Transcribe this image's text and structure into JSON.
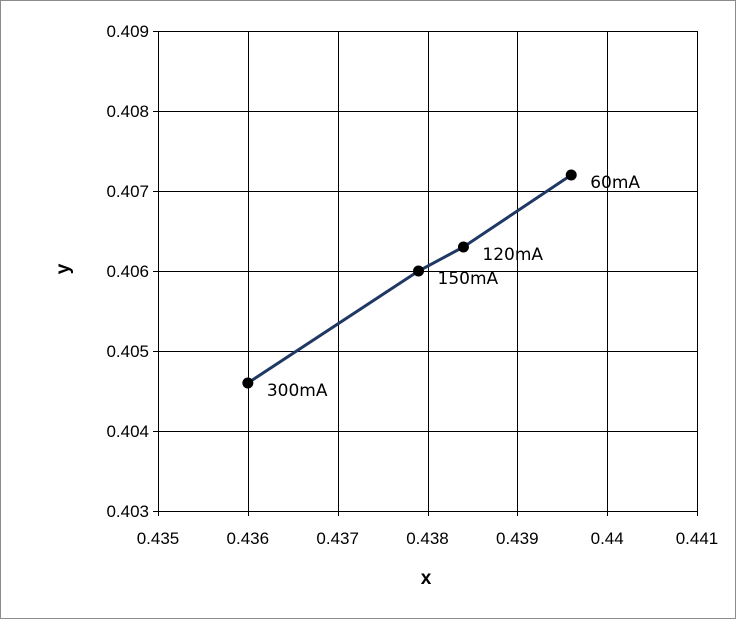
{
  "chart_data": {
    "type": "scatter",
    "title": "",
    "xlabel": "x",
    "ylabel": "y",
    "xlim": [
      0.435,
      0.441
    ],
    "ylim": [
      0.403,
      0.409
    ],
    "xticks": [
      "0.435",
      "0.436",
      "0.437",
      "0.438",
      "0.439",
      "0.44",
      "0.441"
    ],
    "yticks": [
      "0.403",
      "0.404",
      "0.405",
      "0.406",
      "0.407",
      "0.408",
      "0.409"
    ],
    "grid": true,
    "legend": "none",
    "series": [
      {
        "line_color": "#1f3864",
        "marker_color": "#000000",
        "points": [
          {
            "x": 0.436,
            "y": 0.4046,
            "label": "300mA"
          },
          {
            "x": 0.4379,
            "y": 0.406,
            "label": "150mA"
          },
          {
            "x": 0.4384,
            "y": 0.4063,
            "label": "120mA"
          },
          {
            "x": 0.4396,
            "y": 0.4072,
            "label": "60mA"
          }
        ]
      }
    ]
  }
}
